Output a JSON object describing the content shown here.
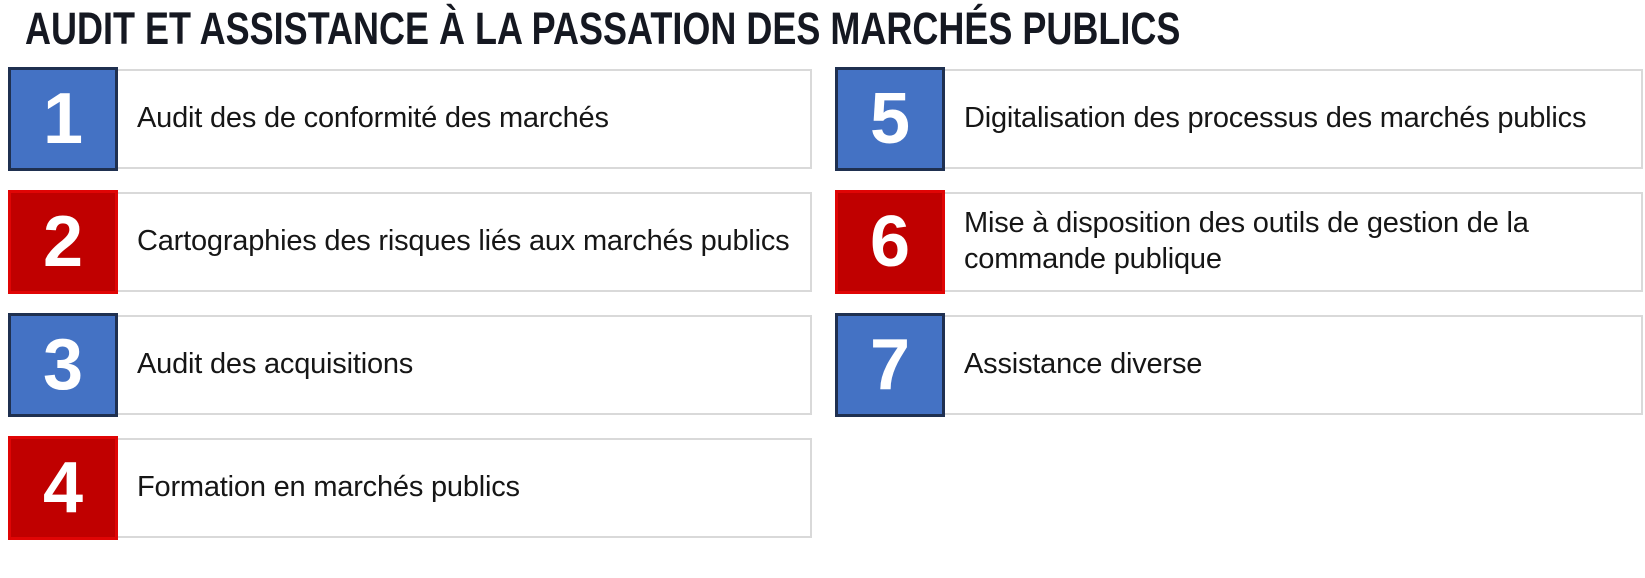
{
  "title": "AUDIT ET ASSISTANCE À LA PASSATION DES MARCHÉS PUBLICS",
  "colors": {
    "blue": "#4472C4",
    "blue_border": "#1F3050",
    "red": "#C00000",
    "red_border": "#E00505",
    "box_border": "#D9D9D9",
    "text": "#161616",
    "title_color": "#151821"
  },
  "columns": {
    "left": [
      {
        "number": "1",
        "color": "blue",
        "label": "Audit des de conformité des marchés"
      },
      {
        "number": "2",
        "color": "red",
        "label": "Cartographies des risques liés aux marchés publics"
      },
      {
        "number": "3",
        "color": "blue",
        "label": "Audit des acquisitions"
      },
      {
        "number": "4",
        "color": "red",
        "label": "Formation en marchés publics"
      }
    ],
    "right": [
      {
        "number": "5",
        "color": "blue",
        "label": "Digitalisation des processus des marchés publics"
      },
      {
        "number": "6",
        "color": "red",
        "label": "Mise à disposition des outils de gestion de la commande publique"
      },
      {
        "number": "7",
        "color": "blue",
        "label": "Assistance diverse"
      }
    ]
  }
}
